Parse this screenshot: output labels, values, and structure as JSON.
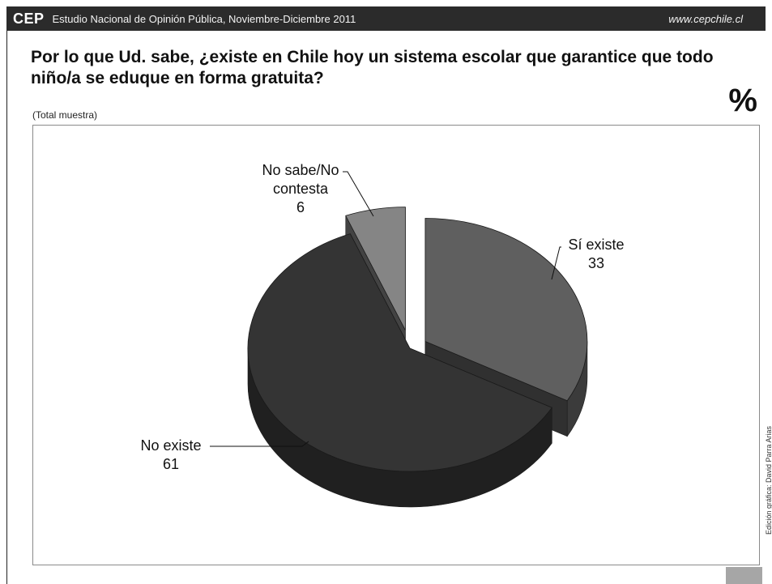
{
  "header": {
    "logo": "CEP",
    "subtitle": "Estudio Nacional de Opinión Pública, Noviembre-Diciembre 2011",
    "url": "www.cepchile.cl"
  },
  "question": "Por lo que Ud. sabe, ¿existe en Chile hoy un sistema escolar que garantice que todo niño/a se eduque en forma gratuita?",
  "note": "(Total muestra)",
  "unit": "%",
  "credit": "Edición gráfica: David Parra Arias",
  "chart_data": {
    "type": "pie",
    "style": "3d-exploded",
    "slices": [
      {
        "label": "Sí existe",
        "value": 33,
        "color": "#5f5f5f"
      },
      {
        "label": "No existe",
        "value": 61,
        "color": "#343434"
      },
      {
        "label": "No sabe/No contesta",
        "label_lines": [
          "No sabe/No",
          "contesta"
        ],
        "value": 6,
        "color": "#858585"
      }
    ]
  }
}
